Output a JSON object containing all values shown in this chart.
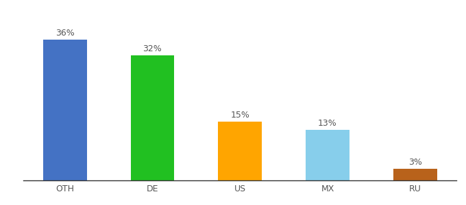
{
  "categories": [
    "OTH",
    "DE",
    "US",
    "MX",
    "RU"
  ],
  "values": [
    36,
    32,
    15,
    13,
    3
  ],
  "bar_colors": [
    "#4472c4",
    "#21c021",
    "#ffa500",
    "#87ceeb",
    "#b8621b"
  ],
  "labels": [
    "36%",
    "32%",
    "15%",
    "13%",
    "3%"
  ],
  "ylim": [
    0,
    42
  ],
  "background_color": "#ffffff",
  "label_fontsize": 9,
  "tick_fontsize": 9,
  "bar_width": 0.5
}
